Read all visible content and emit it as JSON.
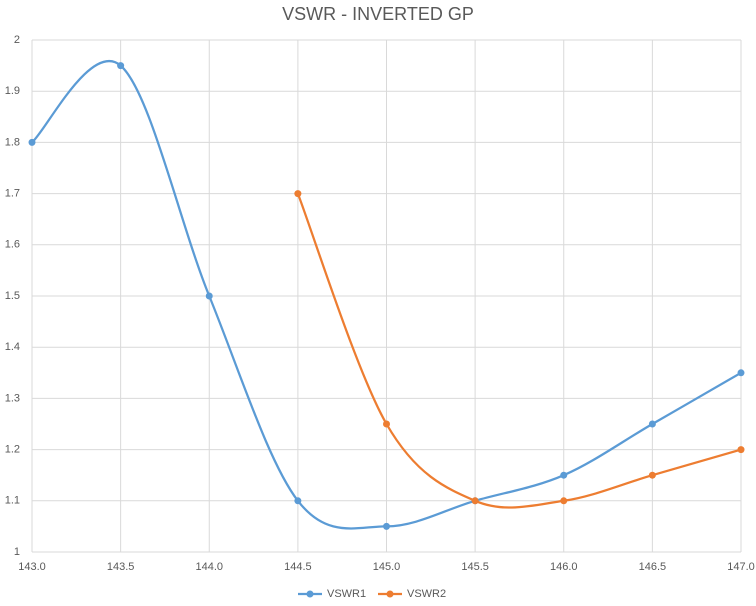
{
  "chart_data": {
    "type": "line",
    "title": "VSWR - INVERTED GP",
    "smooth": true,
    "grid": true,
    "legend": "bottom",
    "x": [
      143.0,
      143.5,
      144.0,
      144.5,
      145.0,
      145.5,
      146.0,
      146.5,
      147.0
    ],
    "series": [
      {
        "name": "VSWR1",
        "color": "#5b9bd5",
        "values": [
          1.8,
          1.95,
          1.5,
          1.1,
          1.05,
          1.1,
          1.15,
          1.25,
          1.35
        ]
      },
      {
        "name": "VSWR2",
        "color": "#ed7d31",
        "values": [
          null,
          null,
          null,
          1.7,
          1.25,
          1.1,
          1.1,
          1.15,
          1.2
        ]
      }
    ],
    "xlim": [
      143,
      147
    ],
    "xticks": [
      {
        "value": 143,
        "label": "143.0"
      },
      {
        "value": 143.5,
        "label": "143.5"
      },
      {
        "value": 144,
        "label": "144.0"
      },
      {
        "value": 144.5,
        "label": "144.5"
      },
      {
        "value": 145,
        "label": "145.0"
      },
      {
        "value": 145.5,
        "label": "145.5"
      },
      {
        "value": 146,
        "label": "146.0"
      },
      {
        "value": 146.5,
        "label": "146.5"
      },
      {
        "value": 147,
        "label": "147.0"
      }
    ],
    "ylim": [
      1,
      2
    ],
    "yticks": [
      1,
      1.1,
      1.2,
      1.3,
      1.4,
      1.5,
      1.6,
      1.7,
      1.8,
      1.9,
      2
    ]
  }
}
